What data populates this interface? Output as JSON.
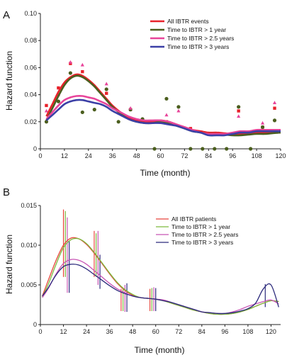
{
  "chart_data": [
    {
      "panel_label": "A",
      "type": "line",
      "xlabel": "Time (month)",
      "ylabel": "Hazard function",
      "xlim": [
        0,
        120
      ],
      "ylim": [
        0,
        0.1
      ],
      "xticks": [
        "0",
        "12",
        "24",
        "36",
        "48",
        "60",
        "72",
        "84",
        "96",
        "108",
        "120"
      ],
      "yticks": [
        "0",
        "0.02",
        "0.04",
        "0.06",
        "0.08",
        "0.10"
      ],
      "legend_position": "top-right",
      "series": [
        {
          "name": "All IBTR events",
          "color": "#e8222b",
          "x": [
            3,
            6,
            9,
            12,
            15,
            18,
            21,
            24,
            27,
            30,
            33,
            36,
            40,
            44,
            48,
            52,
            56,
            60,
            64,
            68,
            72,
            76,
            80,
            84,
            88,
            92,
            96,
            100,
            104,
            108,
            112,
            116,
            120
          ],
          "values": [
            0.024,
            0.033,
            0.042,
            0.049,
            0.053,
            0.055,
            0.054,
            0.051,
            0.047,
            0.042,
            0.037,
            0.032,
            0.027,
            0.023,
            0.021,
            0.02,
            0.02,
            0.021,
            0.02,
            0.018,
            0.016,
            0.014,
            0.013,
            0.012,
            0.012,
            0.0115,
            0.011,
            0.011,
            0.0115,
            0.012,
            0.012,
            0.012,
            0.012
          ]
        },
        {
          "name": "Time to IBTR > 1 year",
          "color": "#4b5e1e",
          "x": [
            3,
            6,
            9,
            12,
            15,
            18,
            21,
            24,
            27,
            30,
            33,
            36,
            40,
            44,
            48,
            52,
            56,
            60,
            64,
            68,
            72,
            76,
            80,
            84,
            88,
            92,
            96,
            100,
            104,
            108,
            112,
            116,
            120
          ],
          "values": [
            0.021,
            0.03,
            0.039,
            0.047,
            0.052,
            0.054,
            0.053,
            0.05,
            0.046,
            0.041,
            0.036,
            0.031,
            0.026,
            0.022,
            0.02,
            0.019,
            0.019,
            0.02,
            0.019,
            0.017,
            0.015,
            0.013,
            0.012,
            0.011,
            0.011,
            0.0105,
            0.01,
            0.01,
            0.0105,
            0.011,
            0.011,
            0.0115,
            0.012
          ]
        },
        {
          "name": "Time to IBTR > 2.5 years",
          "color": "#e8449a",
          "x": [
            3,
            6,
            9,
            12,
            15,
            18,
            21,
            24,
            27,
            30,
            33,
            36,
            40,
            44,
            48,
            52,
            56,
            60,
            64,
            68,
            72,
            76,
            80,
            84,
            88,
            92,
            96,
            100,
            104,
            108,
            112,
            116,
            120
          ],
          "values": [
            0.022,
            0.027,
            0.032,
            0.036,
            0.038,
            0.039,
            0.039,
            0.038,
            0.037,
            0.035,
            0.033,
            0.03,
            0.027,
            0.024,
            0.022,
            0.021,
            0.021,
            0.021,
            0.02,
            0.018,
            0.016,
            0.014,
            0.012,
            0.011,
            0.011,
            0.011,
            0.012,
            0.013,
            0.013,
            0.014,
            0.014,
            0.014,
            0.014
          ]
        },
        {
          "name": "Time to IBTR > 3 years",
          "color": "#3b3fa6",
          "x": [
            3,
            6,
            9,
            12,
            15,
            18,
            21,
            24,
            27,
            30,
            33,
            36,
            40,
            44,
            48,
            52,
            56,
            60,
            64,
            68,
            72,
            76,
            80,
            84,
            88,
            92,
            96,
            100,
            104,
            108,
            112,
            116,
            120
          ],
          "values": [
            0.021,
            0.025,
            0.029,
            0.033,
            0.035,
            0.036,
            0.036,
            0.035,
            0.034,
            0.033,
            0.031,
            0.028,
            0.025,
            0.022,
            0.02,
            0.019,
            0.019,
            0.019,
            0.018,
            0.017,
            0.015,
            0.013,
            0.012,
            0.01,
            0.01,
            0.01,
            0.011,
            0.012,
            0.012,
            0.013,
            0.013,
            0.013,
            0.013
          ]
        }
      ],
      "scatter": [
        {
          "series": "All IBTR events",
          "marker": "square",
          "color": "#e8222b",
          "x": [
            3,
            9,
            15,
            21,
            33,
            45,
            63,
            75,
            87,
            99,
            111,
            117
          ],
          "values": [
            0.032,
            0.045,
            0.063,
            0.057,
            0.041,
            0.029,
            0.02,
            0.015,
            0.011,
            0.028,
            0.016,
            0.03
          ]
        },
        {
          "series": "Time to IBTR > 1 year",
          "marker": "circle",
          "color": "#4b5e1e",
          "x": [
            3,
            9,
            15,
            21,
            27,
            33,
            39,
            45,
            51,
            57,
            63,
            69,
            75,
            81,
            87,
            93,
            99,
            105,
            111,
            117
          ],
          "values": [
            0.02,
            0.035,
            0.056,
            0.027,
            0.029,
            0.044,
            0.02,
            0.029,
            0.022,
            0.0,
            0.037,
            0.031,
            0.0,
            0.0,
            0.0,
            0.0,
            0.031,
            0.0,
            0.016,
            0.021
          ]
        },
        {
          "series": "Time to IBTR > 2.5 years",
          "marker": "triangle",
          "color": "#e8449a",
          "x": [
            3,
            9,
            15,
            21,
            33,
            45,
            63,
            69,
            87,
            99,
            111,
            117
          ],
          "values": [
            0.028,
            0.04,
            0.064,
            0.062,
            0.048,
            0.03,
            0.025,
            0.028,
            0.011,
            0.024,
            0.019,
            0.034
          ]
        }
      ]
    },
    {
      "panel_label": "B",
      "type": "line",
      "xlabel": "Time (month)",
      "ylabel": "Hazard function",
      "xlim": [
        0,
        125
      ],
      "ylim": [
        0,
        0.015
      ],
      "xticks": [
        "0",
        "12",
        "24",
        "36",
        "48",
        "60",
        "72",
        "84",
        "96",
        "108",
        "120"
      ],
      "yticks": [
        "0",
        "0.005",
        "0.010",
        "0.015"
      ],
      "legend_position": "top-right",
      "series": [
        {
          "name": "All IBTR patients",
          "color": "#e8453c",
          "x": [
            1,
            4,
            8,
            12,
            16,
            20,
            24,
            28,
            32,
            36,
            40,
            44,
            48,
            52,
            56,
            60,
            64,
            68,
            72,
            76,
            80,
            84,
            88,
            92,
            96,
            100,
            104,
            108,
            112,
            116,
            120,
            124
          ],
          "values": [
            0.0036,
            0.0055,
            0.008,
            0.01,
            0.0109,
            0.0108,
            0.0101,
            0.009,
            0.0077,
            0.0064,
            0.0052,
            0.0043,
            0.0037,
            0.0034,
            0.0033,
            0.0032,
            0.003,
            0.0027,
            0.0024,
            0.0021,
            0.0018,
            0.0016,
            0.0014,
            0.0013,
            0.0013,
            0.0014,
            0.0016,
            0.0019,
            0.0023,
            0.0027,
            0.003,
            0.0029
          ]
        },
        {
          "name": "Time to IBTR > 1 year",
          "color": "#7dba3e",
          "x": [
            1,
            4,
            8,
            12,
            16,
            20,
            24,
            28,
            32,
            36,
            40,
            44,
            48,
            52,
            56,
            60,
            64,
            68,
            72,
            76,
            80,
            84,
            88,
            92,
            96,
            100,
            104,
            108,
            112,
            116,
            120,
            124
          ],
          "values": [
            0.0035,
            0.005,
            0.0075,
            0.0097,
            0.0107,
            0.0108,
            0.0102,
            0.0091,
            0.0078,
            0.0065,
            0.0053,
            0.0044,
            0.0038,
            0.0034,
            0.0033,
            0.0032,
            0.003,
            0.0027,
            0.0024,
            0.0021,
            0.0018,
            0.0016,
            0.0014,
            0.0013,
            0.0013,
            0.0014,
            0.0016,
            0.0019,
            0.0023,
            0.0027,
            0.003,
            0.0029
          ]
        },
        {
          "name": "Time to IBTR > 2.5 years",
          "color": "#c855b5",
          "x": [
            1,
            4,
            8,
            12,
            16,
            20,
            24,
            28,
            32,
            36,
            40,
            44,
            48,
            52,
            56,
            60,
            64,
            68,
            72,
            76,
            80,
            84,
            88,
            92,
            96,
            100,
            104,
            108,
            112,
            116,
            120,
            124
          ],
          "values": [
            0.0034,
            0.0045,
            0.0063,
            0.0077,
            0.0082,
            0.0081,
            0.0076,
            0.0068,
            0.006,
            0.0052,
            0.0045,
            0.004,
            0.0036,
            0.0034,
            0.0033,
            0.0032,
            0.0031,
            0.0028,
            0.0025,
            0.0022,
            0.0019,
            0.0016,
            0.0015,
            0.0014,
            0.0014,
            0.0016,
            0.0019,
            0.0023,
            0.0026,
            0.0029,
            0.0031,
            0.0026
          ]
        },
        {
          "name": "Time to IBTR > 3 years",
          "color": "#2c2a7c",
          "x": [
            1,
            4,
            8,
            12,
            16,
            20,
            24,
            28,
            32,
            36,
            40,
            44,
            48,
            52,
            56,
            60,
            64,
            68,
            72,
            76,
            80,
            84,
            88,
            92,
            96,
            100,
            104,
            108,
            112,
            116,
            120,
            124
          ],
          "values": [
            0.0036,
            0.0046,
            0.0062,
            0.0073,
            0.0076,
            0.0075,
            0.007,
            0.0063,
            0.0056,
            0.0049,
            0.0043,
            0.0039,
            0.0036,
            0.0034,
            0.0033,
            0.0032,
            0.003,
            0.0028,
            0.0025,
            0.0022,
            0.0019,
            0.0016,
            0.0015,
            0.0014,
            0.0014,
            0.0015,
            0.0017,
            0.002,
            0.0027,
            0.0045,
            0.005,
            0.0022
          ]
        }
      ],
      "error_bars": [
        {
          "color": "#e8453c",
          "x": [
            12,
            28,
            42,
            57
          ],
          "low": [
            0.006,
            0.006,
            0.0017,
            0.0017
          ],
          "high": [
            0.0145,
            0.0118,
            0.0045,
            0.0045
          ]
        },
        {
          "color": "#7dba3e",
          "x": [
            13,
            29,
            43,
            58
          ],
          "low": [
            0.006,
            0.006,
            0.0017,
            0.0017
          ],
          "high": [
            0.0143,
            0.0115,
            0.0045,
            0.0046
          ]
        },
        {
          "color": "#c855b5",
          "x": [
            14,
            30,
            44,
            59
          ],
          "low": [
            0.004,
            0.005,
            0.0016,
            0.0017
          ],
          "high": [
            0.0135,
            0.0118,
            0.005,
            0.0047
          ]
        },
        {
          "color": "#2c2a7c",
          "x": [
            15,
            31,
            45,
            60
          ],
          "low": [
            0.004,
            0.0045,
            0.0016,
            0.0017
          ],
          "high": [
            0.0105,
            0.0088,
            0.0052,
            0.0046
          ]
        },
        {
          "color": "#2c2a7c",
          "x": [
            117
          ],
          "low": [
            0.0022
          ],
          "high": [
            0.0051
          ]
        }
      ]
    }
  ]
}
